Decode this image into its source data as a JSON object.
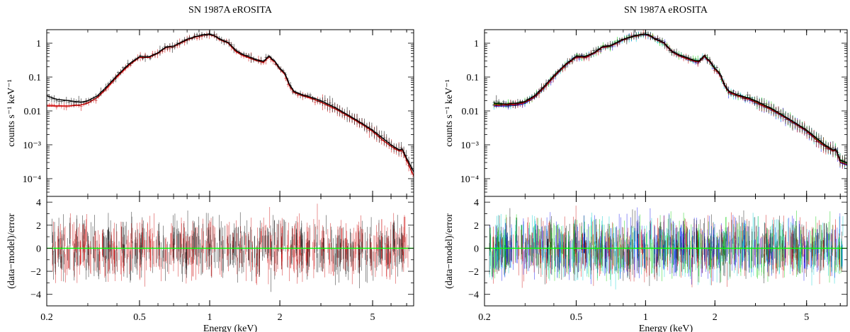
{
  "chart_data": [
    {
      "type": "line",
      "title": "SN 1987A eROSITA",
      "xlabel": "Energy (keV)",
      "x_scale": "log",
      "xlim": [
        0.2,
        7.5
      ],
      "x_ticks": [
        0.2,
        0.5,
        1,
        2,
        5
      ],
      "x_tick_labels": [
        "0.2",
        "0.5",
        "1",
        "2",
        "5"
      ],
      "top_panel": {
        "ylabel": "counts s⁻¹ keV⁻¹",
        "y_scale": "log",
        "ylim": [
          3e-05,
          2.5
        ],
        "y_ticks": [
          0.0001,
          0.001,
          0.01,
          0.1,
          1
        ],
        "y_tick_labels": [
          "10⁻⁴",
          "10⁻³",
          "0.01",
          "0.1",
          "1"
        ],
        "x": [
          0.2,
          0.22,
          0.25,
          0.28,
          0.3,
          0.33,
          0.36,
          0.4,
          0.45,
          0.5,
          0.55,
          0.6,
          0.65,
          0.7,
          0.75,
          0.8,
          0.85,
          0.9,
          0.95,
          1.0,
          1.05,
          1.1,
          1.2,
          1.3,
          1.4,
          1.5,
          1.6,
          1.7,
          1.8,
          1.85,
          1.9,
          2.0,
          2.1,
          2.2,
          2.3,
          2.5,
          2.8,
          3.0,
          3.5,
          4.0,
          4.5,
          5.0,
          5.5,
          6.0,
          6.5,
          6.7,
          7.0,
          7.5
        ],
        "series": [
          {
            "name": "",
            "color": "#cc0000",
            "values": [
              0.014,
              0.014,
              0.014,
              0.015,
              0.017,
              0.025,
              0.045,
              0.1,
              0.22,
              0.38,
              0.38,
              0.5,
              0.75,
              0.8,
              1.0,
              1.25,
              1.45,
              1.6,
              1.75,
              1.8,
              1.6,
              1.3,
              1.0,
              0.55,
              0.42,
              0.35,
              0.3,
              0.27,
              0.4,
              0.32,
              0.28,
              0.17,
              0.12,
              0.055,
              0.035,
              0.028,
              0.022,
              0.018,
              0.011,
              0.0065,
              0.004,
              0.0025,
              0.0014,
              0.0009,
              0.00065,
              0.0007,
              0.00035,
              0.00012
            ]
          },
          {
            "name": "",
            "color": "#000000",
            "values": [
              0.028,
              0.022,
              0.02,
              0.018,
              0.02,
              0.028,
              0.05,
              0.11,
              0.24,
              0.4,
              0.4,
              0.52,
              0.78,
              0.82,
              1.05,
              1.3,
              1.5,
              1.65,
              1.8,
              1.85,
              1.65,
              1.35,
              1.05,
              0.6,
              0.45,
              0.38,
              0.32,
              0.29,
              0.42,
              0.34,
              0.3,
              0.18,
              0.13,
              0.06,
              0.038,
              0.03,
              0.024,
              0.02,
              0.012,
              0.007,
              0.0043,
              0.0027,
              0.0016,
              0.001,
              0.0007,
              0.00075,
              0.0004,
              0.00016
            ]
          }
        ]
      },
      "bottom_panel": {
        "ylabel": "(data−model)/error",
        "ylim": [
          -5,
          4.5
        ],
        "y_ticks": [
          -4,
          -2,
          0,
          2,
          4
        ],
        "y_tick_labels": [
          "−4",
          "−2",
          "0",
          "2",
          "4"
        ],
        "reference_line": {
          "value": 0,
          "color": "#00ff00"
        },
        "residual_colors": [
          "#000000",
          "#cc0000"
        ],
        "residual_spread": 1.3
      }
    },
    {
      "type": "line",
      "title": "SN 1987A eROSITA",
      "xlabel": "Energy (keV)",
      "x_scale": "log",
      "xlim": [
        0.2,
        7.5
      ],
      "x_ticks": [
        0.2,
        0.5,
        1,
        2,
        5
      ],
      "x_tick_labels": [
        "0.2",
        "0.5",
        "1",
        "2",
        "5"
      ],
      "top_panel": {
        "ylabel": "counts s⁻¹ keV⁻¹",
        "y_scale": "log",
        "ylim": [
          3e-05,
          2.5
        ],
        "y_ticks": [
          0.0001,
          0.001,
          0.01,
          0.1,
          1
        ],
        "y_tick_labels": [
          "10⁻⁴",
          "10⁻³",
          "0.01",
          "0.1",
          "1"
        ],
        "x": [
          0.22,
          0.25,
          0.28,
          0.3,
          0.33,
          0.36,
          0.4,
          0.45,
          0.5,
          0.55,
          0.6,
          0.65,
          0.7,
          0.75,
          0.8,
          0.85,
          0.9,
          0.95,
          1.0,
          1.05,
          1.1,
          1.2,
          1.3,
          1.4,
          1.5,
          1.6,
          1.7,
          1.8,
          1.85,
          1.9,
          2.0,
          2.1,
          2.2,
          2.3,
          2.5,
          2.8,
          3.0,
          3.5,
          4.0,
          4.5,
          5.0,
          5.5,
          6.0,
          6.5,
          6.7,
          7.0,
          7.5
        ],
        "series": [
          {
            "name": "",
            "color": "#0000ee",
            "values": [
              0.014,
              0.014,
              0.015,
              0.017,
              0.025,
              0.045,
              0.1,
              0.22,
              0.38,
              0.38,
              0.5,
              0.75,
              0.8,
              1.0,
              1.25,
              1.45,
              1.6,
              1.75,
              1.8,
              1.6,
              1.3,
              1.0,
              0.55,
              0.42,
              0.35,
              0.3,
              0.27,
              0.4,
              0.32,
              0.28,
              0.17,
              0.12,
              0.055,
              0.035,
              0.028,
              0.022,
              0.018,
              0.011,
              0.0065,
              0.004,
              0.0025,
              0.0014,
              0.0009,
              0.00065,
              0.0007,
              0.0003,
              0.00025
            ]
          },
          {
            "name": "",
            "color": "#00cccc",
            "values": [
              0.015,
              0.015,
              0.016,
              0.018,
              0.026,
              0.047,
              0.104,
              0.23,
              0.39,
              0.39,
              0.51,
              0.77,
              0.81,
              1.02,
              1.27,
              1.47,
              1.62,
              1.77,
              1.82,
              1.62,
              1.32,
              1.02,
              0.56,
              0.43,
              0.36,
              0.31,
              0.28,
              0.41,
              0.33,
              0.29,
              0.175,
              0.123,
              0.057,
              0.036,
              0.029,
              0.023,
              0.0185,
              0.0113,
              0.0067,
              0.0041,
              0.0026,
              0.00145,
              0.00093,
              0.00067,
              0.00072,
              0.00032,
              0.00027
            ]
          },
          {
            "name": "",
            "color": "#00cc00",
            "values": [
              0.016,
              0.016,
              0.017,
              0.019,
              0.027,
              0.048,
              0.106,
              0.235,
              0.4,
              0.4,
              0.52,
              0.78,
              0.82,
              1.03,
              1.28,
              1.48,
              1.63,
              1.78,
              1.83,
              1.63,
              1.33,
              1.03,
              0.57,
              0.44,
              0.37,
              0.32,
              0.29,
              0.42,
              0.34,
              0.3,
              0.18,
              0.126,
              0.058,
              0.037,
              0.03,
              0.024,
              0.019,
              0.0116,
              0.0069,
              0.0042,
              0.0027,
              0.0015,
              0.00096,
              0.00069,
              0.00074,
              0.00034,
              0.00029
            ]
          },
          {
            "name": "",
            "color": "#cc0000",
            "values": [
              0.015,
              0.015,
              0.016,
              0.018,
              0.026,
              0.046,
              0.102,
              0.225,
              0.385,
              0.385,
              0.505,
              0.76,
              0.805,
              1.01,
              1.26,
              1.46,
              1.61,
              1.76,
              1.81,
              1.61,
              1.31,
              1.01,
              0.555,
              0.425,
              0.355,
              0.305,
              0.275,
              0.405,
              0.325,
              0.285,
              0.172,
              0.121,
              0.056,
              0.0355,
              0.0285,
              0.0225,
              0.0182,
              0.0111,
              0.0066,
              0.00405,
              0.00255,
              0.00142,
              0.00091,
              0.00066,
              0.00071,
              0.00031,
              0.00026
            ]
          },
          {
            "name": "",
            "color": "#000000",
            "values": [
              0.017,
              0.016,
              0.017,
              0.019,
              0.028,
              0.05,
              0.11,
              0.24,
              0.41,
              0.41,
              0.53,
              0.79,
              0.83,
              1.05,
              1.3,
              1.5,
              1.65,
              1.8,
              1.85,
              1.65,
              1.35,
              1.05,
              0.58,
              0.45,
              0.38,
              0.32,
              0.29,
              0.43,
              0.35,
              0.3,
              0.18,
              0.13,
              0.06,
              0.038,
              0.03,
              0.024,
              0.02,
              0.012,
              0.007,
              0.0043,
              0.0027,
              0.0016,
              0.001,
              0.0007,
              0.00075,
              0.00035,
              0.0003
            ]
          }
        ]
      },
      "bottom_panel": {
        "ylabel": "(data−model)/error",
        "ylim": [
          -5,
          4.5
        ],
        "y_ticks": [
          -4,
          -2,
          0,
          2,
          4
        ],
        "y_tick_labels": [
          "−4",
          "−2",
          "0",
          "2",
          "4"
        ],
        "reference_line": {
          "value": 0,
          "color": "#00ff00"
        },
        "residual_colors": [
          "#000000",
          "#cc0000",
          "#00cc00",
          "#0000ee",
          "#00cccc"
        ],
        "residual_spread": 1.3
      }
    }
  ]
}
